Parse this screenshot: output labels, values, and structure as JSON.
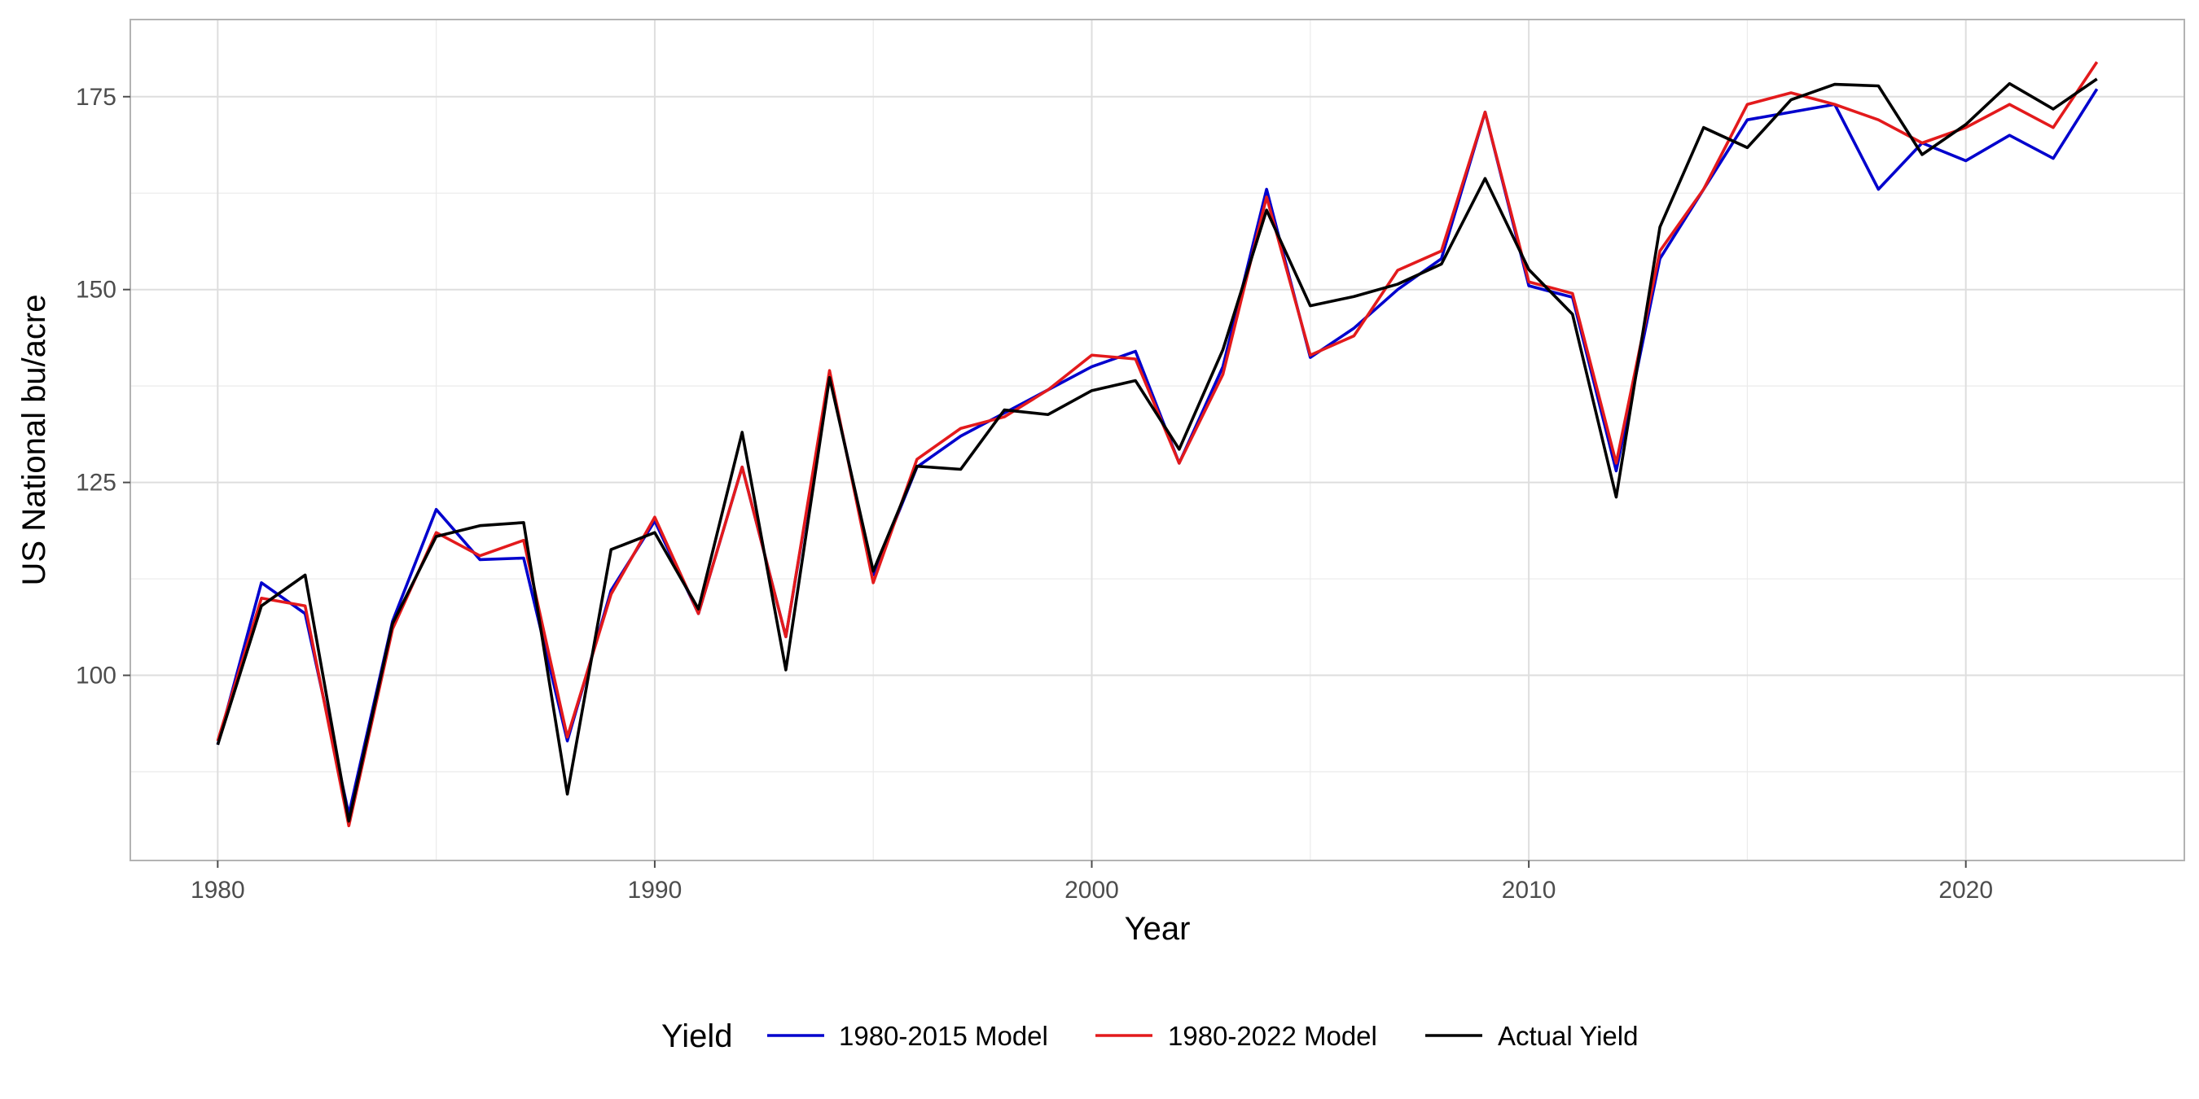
{
  "chart_data": {
    "type": "line",
    "title": "",
    "xlabel": "Year",
    "ylabel": "US National bu/acre",
    "xlim": [
      1978,
      2025
    ],
    "ylim": [
      76,
      185
    ],
    "x_ticks": [
      1980,
      1990,
      2000,
      2010,
      2020
    ],
    "y_ticks": [
      100,
      125,
      150,
      175
    ],
    "grid": true,
    "legend": {
      "title": "Yield",
      "position": "bottom"
    },
    "x": [
      1980,
      1981,
      1982,
      1983,
      1984,
      1985,
      1986,
      1987,
      1988,
      1989,
      1990,
      1991,
      1992,
      1993,
      1994,
      1995,
      1996,
      1997,
      1998,
      1999,
      2000,
      2001,
      2002,
      2003,
      2004,
      2005,
      2006,
      2007,
      2008,
      2009,
      2010,
      2011,
      2012,
      2013,
      2014,
      2015,
      2016,
      2017,
      2018,
      2019,
      2020,
      2021,
      2022,
      2023
    ],
    "series": [
      {
        "name": "1980-2015 Model",
        "color": "#0000cd",
        "values": [
          91,
          112,
          108,
          82,
          107,
          121.5,
          115,
          115.2,
          91.5,
          111,
          120,
          108,
          127,
          105,
          139,
          113,
          127,
          131,
          134,
          137,
          140,
          142,
          127.5,
          140,
          163,
          141.2,
          145,
          150,
          154,
          173,
          150.5,
          149,
          126.5,
          154,
          163,
          172,
          173,
          174,
          163,
          169,
          166.7,
          170,
          167,
          176
        ]
      },
      {
        "name": "1980-2022 Model",
        "color": "#e31a1c",
        "values": [
          91.5,
          110,
          109,
          80.5,
          106,
          118.5,
          115.5,
          117.5,
          92,
          110.5,
          120.5,
          108,
          127,
          105,
          139.5,
          112,
          128,
          132,
          133.5,
          137,
          141.5,
          141,
          127.5,
          139,
          162,
          141.5,
          144,
          152.5,
          155,
          173,
          151,
          149.5,
          127.5,
          155,
          163,
          174,
          175.5,
          174,
          172,
          169,
          171,
          174,
          171,
          179.5
        ]
      },
      {
        "name": "Actual Yield",
        "color": "#000000",
        "values": [
          91,
          109,
          113,
          81.1,
          106.7,
          118,
          119.4,
          119.8,
          84.6,
          116.3,
          118.5,
          108.6,
          131.5,
          100.7,
          138.6,
          113.5,
          127.1,
          126.7,
          134.4,
          133.8,
          136.9,
          138.2,
          129.3,
          142.2,
          160.3,
          147.9,
          149.1,
          150.7,
          153.3,
          164.4,
          152.6,
          146.8,
          123.1,
          158.1,
          171,
          168.4,
          174.6,
          176.6,
          176.4,
          167.5,
          171.4,
          176.7,
          173.4,
          177.3
        ]
      }
    ]
  }
}
